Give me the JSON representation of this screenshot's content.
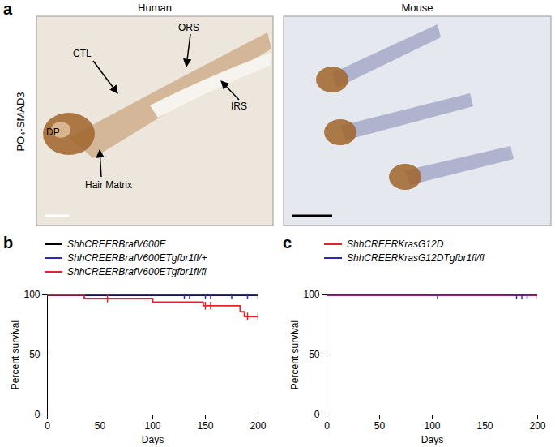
{
  "panel_a": {
    "panel": "a",
    "ylabel": "PO₄-SMAD3",
    "images": [
      {
        "title": "Human",
        "annotations": [
          "DP",
          "Hair Matrix",
          "CTL",
          "ORS",
          "IRS"
        ]
      },
      {
        "title": "Mouse",
        "annotations": []
      }
    ]
  },
  "chart_data": [
    {
      "panel": "b",
      "type": "line",
      "xlabel": "Days",
      "ylabel": "Percent survival",
      "xlim": [
        0,
        200
      ],
      "ylim": [
        0,
        100
      ],
      "xticks": [
        0,
        50,
        100,
        150,
        200
      ],
      "yticks": [
        0,
        50,
        100
      ],
      "series": [
        {
          "name": "ShhCREERBrafV600E",
          "color": "#000000",
          "x": [
            0,
            200
          ],
          "values": [
            100,
            100
          ],
          "censored": []
        },
        {
          "name": "ShhCREERBrafV600ETgfbr1fl/+",
          "color": "#2b2bb8",
          "x": [
            0,
            200
          ],
          "values": [
            100,
            100
          ],
          "censored": [
            130,
            135,
            150,
            155,
            175,
            190,
            200
          ]
        },
        {
          "name": "ShhCREERBrafV600ETgfbr1fl/fl",
          "color": "#e8202a",
          "x": [
            0,
            35,
            100,
            148,
            183,
            187,
            200
          ],
          "values": [
            100,
            97,
            94,
            91,
            86,
            82,
            82
          ],
          "censored": [
            57,
            150,
            155,
            190,
            200
          ]
        }
      ]
    },
    {
      "panel": "c",
      "type": "line",
      "xlabel": "Days",
      "ylabel": "Percent survival",
      "xlim": [
        0,
        200
      ],
      "ylim": [
        0,
        100
      ],
      "xticks": [
        0,
        50,
        100,
        150,
        200
      ],
      "yticks": [
        0,
        50,
        100
      ],
      "series": [
        {
          "name": "ShhCREERKrasG12D",
          "color": "#e8202a",
          "x": [
            0,
            200
          ],
          "values": [
            100,
            100
          ],
          "censored": []
        },
        {
          "name": "ShhCREERKrasG12DTgfbr1fl/fl",
          "color": "#2b2bb8",
          "x": [
            0,
            200
          ],
          "values": [
            100,
            100
          ],
          "censored": [
            105,
            180,
            185,
            190,
            200
          ]
        }
      ]
    }
  ]
}
